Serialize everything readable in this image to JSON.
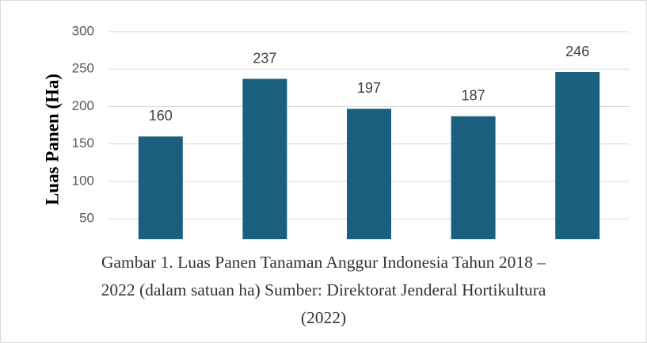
{
  "chart_data": {
    "type": "bar",
    "y_label": "Luas Panen (Ha)",
    "categories": [
      null,
      null,
      null,
      null,
      null
    ],
    "values": [
      160,
      237,
      197,
      187,
      246
    ],
    "color": "#1b5f7e",
    "ylim": [
      0,
      300
    ],
    "yticks": [
      50,
      100,
      150,
      200,
      250,
      300
    ],
    "grid": true,
    "caption": [
      "Gambar 1. Luas Panen Tanaman Anggur Indonesia Tahun 2018 –",
      "2022 (dalam satuan ha) Sumber: Direktorat Jenderal Hortikultura",
      "(2022)"
    ]
  }
}
